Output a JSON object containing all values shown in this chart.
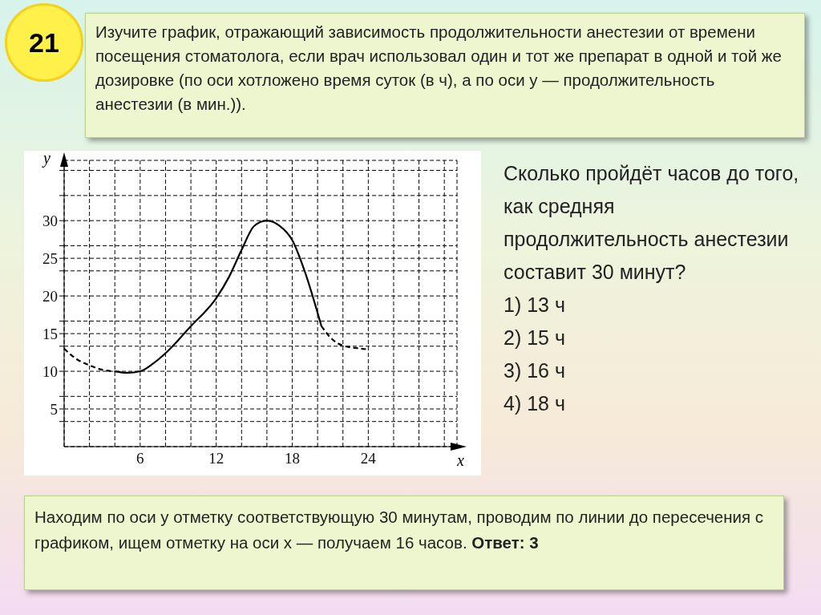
{
  "chart_data": {
    "type": "line",
    "title": "Изучите график, отражающий зависимость продолжительности анестезии от времени посещения стоматолога, если врач использовал один и тот же препарат в одной и той же дозировке (по оси хотложено время суток (в ч), а по оси y — продолжительность анестезии (в мин.)).",
    "xlabel": "x",
    "ylabel": "y",
    "annotations": [
      "21",
      "Сколько пройдёт часов до того, как средняя продолжительность анестезии составит 30 минут?",
      "1) 13 ч",
      "2) 15 ч",
      "3) 16 ч",
      "4) 18 ч",
      "Находим по оси у отметку соответствующую 30 минутам, проводим по линии до пересечения с графиком, ищем отметку на оси х — получаем 16 часов.",
      "Ответ: 3"
    ],
    "xlim": [
      0,
      31
    ],
    "ylim": [
      0,
      38
    ],
    "xticks": [
      {
        "value": 2,
        "label": null
      },
      {
        "value": 4,
        "label": null
      },
      6,
      {
        "value": 8,
        "label": null
      },
      {
        "value": 10,
        "label": null
      },
      12,
      {
        "value": 14,
        "label": null
      },
      {
        "value": 16,
        "label": null
      },
      18,
      {
        "value": 20,
        "label": null
      },
      {
        "value": 22,
        "label": null
      },
      24,
      {
        "value": 26,
        "label": null
      },
      {
        "value": 28,
        "label": null
      },
      {
        "value": 30,
        "label": null
      }
    ],
    "yticks": [
      {
        "value": 3.33,
        "label": null
      },
      5,
      {
        "value": 6.67,
        "label": null
      },
      10,
      {
        "value": 13.33,
        "label": null
      },
      15,
      {
        "value": 16.67,
        "label": null
      },
      20,
      {
        "value": 23.33,
        "label": null
      },
      25,
      {
        "value": 26.67,
        "label": null
      },
      30,
      {
        "value": 33.33,
        "label": null
      },
      {
        "value": 36.67,
        "label": null
      }
    ],
    "grid": true,
    "marker": "none",
    "series": [
      {
        "color": "#000000",
        "line_style": "dashed",
        "x": [
          0,
          1,
          2,
          3,
          4
        ],
        "values": [
          13,
          11.6,
          10.8,
          10.2,
          10
        ]
      },
      {
        "color": "#000000",
        "line_style": "solid",
        "x": [
          4,
          5,
          6,
          7,
          8,
          10,
          12,
          13,
          14,
          15,
          16,
          17,
          18,
          19,
          20.3
        ],
        "values": [
          10,
          9.8,
          10,
          11,
          12.4,
          16,
          19.7,
          22.5,
          26.1,
          29.3,
          30,
          29.3,
          27.4,
          23.2,
          16
        ]
      },
      {
        "color": "#000000",
        "line_style": "dashed",
        "x": [
          20.3,
          21,
          22,
          23,
          24
        ],
        "values": [
          16,
          14.5,
          13.4,
          13.1,
          12.9
        ]
      }
    ]
  }
}
